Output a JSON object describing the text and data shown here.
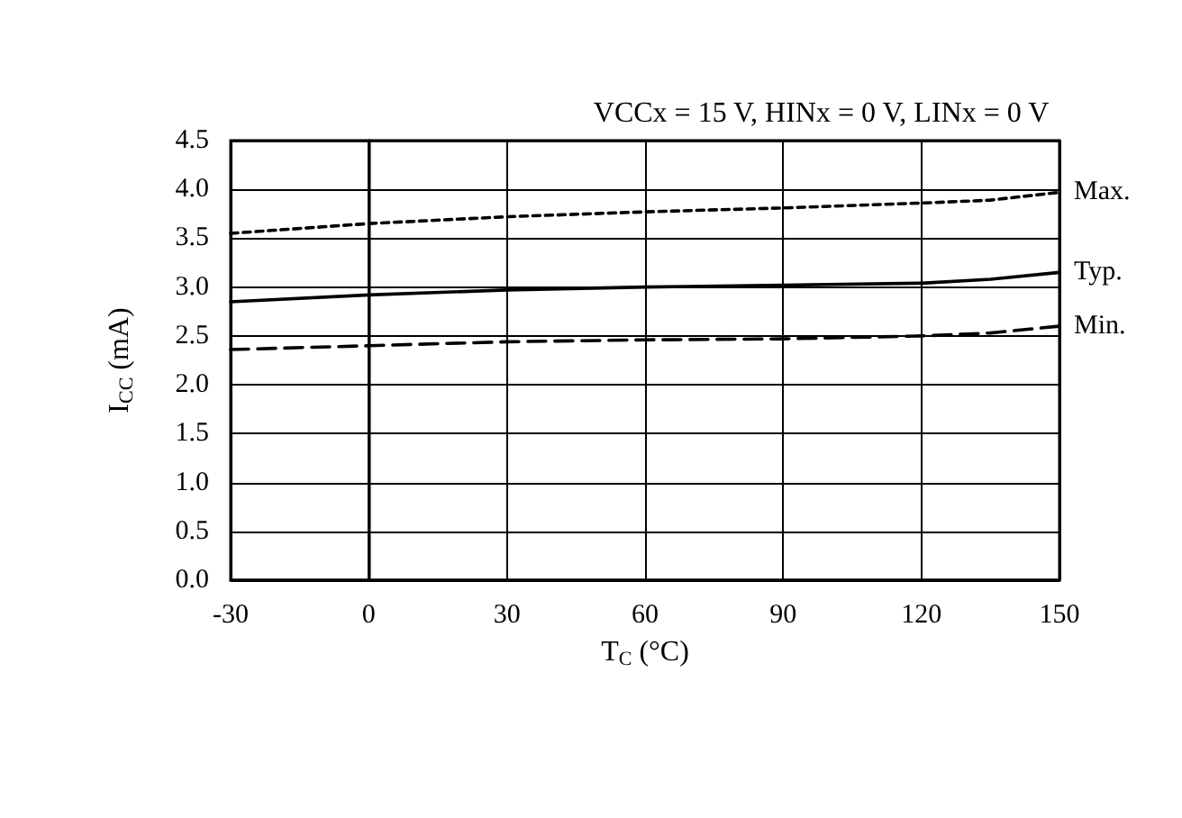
{
  "chart_data": {
    "type": "line",
    "title": "VCCx = 15 V, HINx = 0 V, LINx = 0 V",
    "xlabel": "T$_{C}$ (°C)",
    "ylabel": "I$_{CC}$ (mA)",
    "x": [
      -30,
      0,
      30,
      60,
      90,
      120,
      135,
      150
    ],
    "series": [
      {
        "name": "Max.",
        "color": "#000000",
        "line_style": "dotted",
        "values": [
          3.55,
          3.65,
          3.72,
          3.77,
          3.81,
          3.86,
          3.89,
          3.97
        ]
      },
      {
        "name": "Typ.",
        "color": "#000000",
        "line_style": "solid",
        "values": [
          2.85,
          2.92,
          2.97,
          3.0,
          3.02,
          3.04,
          3.08,
          3.15
        ]
      },
      {
        "name": "Min.",
        "color": "#000000",
        "line_style": "dashed",
        "values": [
          2.36,
          2.4,
          2.44,
          2.46,
          2.47,
          2.5,
          2.53,
          2.6
        ]
      }
    ],
    "xlim": [
      -30,
      150
    ],
    "xticks": [
      -30,
      0,
      30,
      60,
      90,
      120,
      150
    ],
    "ylim": [
      0,
      4.5
    ],
    "yticks": [
      {
        "value": 0,
        "label": "0.0"
      },
      {
        "value": 0.5,
        "label": "0.5"
      },
      {
        "value": 1,
        "label": "1.0"
      },
      {
        "value": 1.5,
        "label": "1.5"
      },
      {
        "value": 2,
        "label": "2.0"
      },
      {
        "value": 2.5,
        "label": "2.5"
      },
      {
        "value": 3,
        "label": "3.0"
      },
      {
        "value": 3.5,
        "label": "3.5"
      },
      {
        "value": 4,
        "label": "4.0"
      },
      {
        "value": 4.5,
        "label": "4.5"
      }
    ],
    "grid": true,
    "legend": false,
    "marker": "none"
  }
}
